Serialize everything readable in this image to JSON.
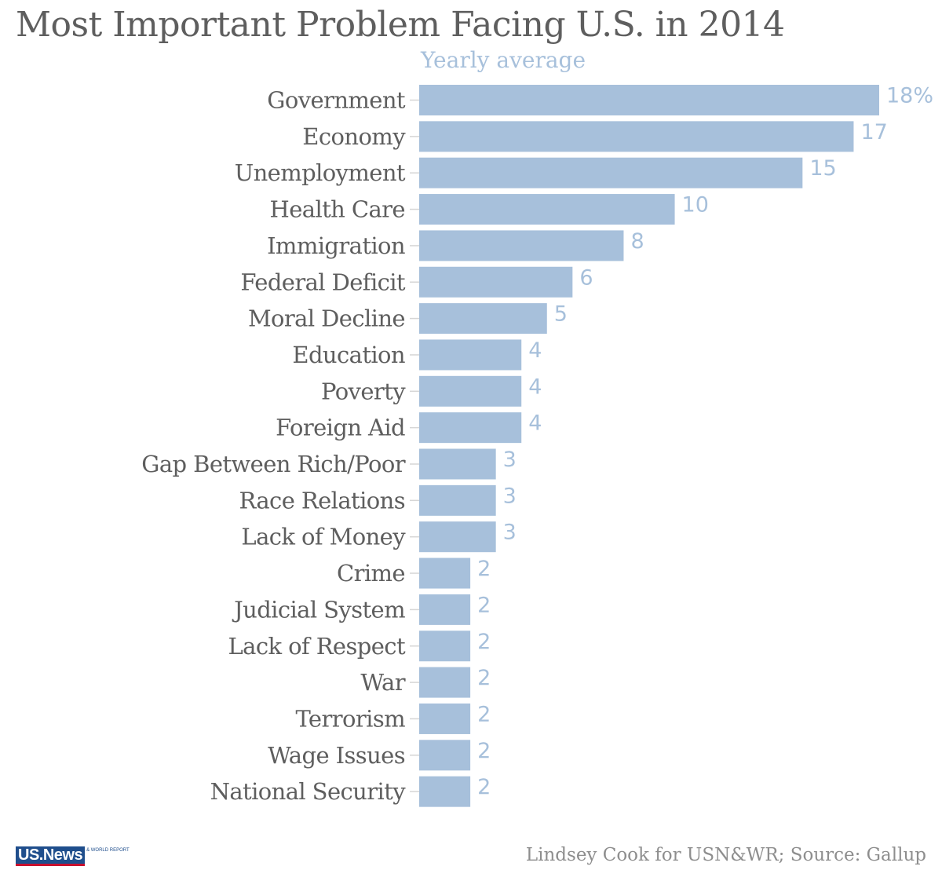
{
  "logo": {
    "main": "US.News",
    "sub": "& WORLD REPORT"
  },
  "source": "Lindsey Cook for USN&WR; Source: Gallup",
  "colors": {
    "bar": "#a7c0db",
    "value": "#a7c0db",
    "label": "#5e5e5e",
    "title": "#5e5e5e"
  },
  "chart_data": {
    "type": "bar",
    "orientation": "horizontal",
    "title": "Most Important Problem Facing U.S. in 2014",
    "subtitle": "Yearly average",
    "categories": [
      "Government",
      "Economy",
      "Unemployment",
      "Health Care",
      "Immigration",
      "Federal Deficit",
      "Moral Decline",
      "Education",
      "Poverty",
      "Foreign Aid",
      "Gap Between Rich/Poor",
      "Race Relations",
      "Lack of Money",
      "Crime",
      "Judicial System",
      "Lack of Respect",
      "War",
      "Terrorism",
      "Wage Issues",
      "National Security"
    ],
    "values": [
      18,
      17,
      15,
      10,
      8,
      6,
      5,
      4,
      4,
      4,
      3,
      3,
      3,
      2,
      2,
      2,
      2,
      2,
      2,
      2
    ],
    "value_labels": [
      "18%",
      "17",
      "15",
      "10",
      "8",
      "6",
      "5",
      "4",
      "4",
      "4",
      "3",
      "3",
      "3",
      "2",
      "2",
      "2",
      "2",
      "2",
      "2",
      "2"
    ],
    "xlim": [
      0,
      18
    ],
    "unit": "%",
    "grid": false,
    "legend": "none"
  }
}
